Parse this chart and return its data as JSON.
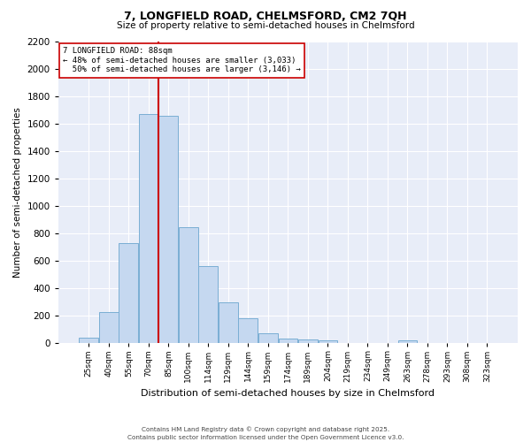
{
  "title": "7, LONGFIELD ROAD, CHELMSFORD, CM2 7QH",
  "subtitle": "Size of property relative to semi-detached houses in Chelmsford",
  "xlabel": "Distribution of semi-detached houses by size in Chelmsford",
  "ylabel": "Number of semi-detached properties",
  "categories": [
    "25sqm",
    "40sqm",
    "55sqm",
    "70sqm",
    "85sqm",
    "100sqm",
    "114sqm",
    "129sqm",
    "144sqm",
    "159sqm",
    "174sqm",
    "189sqm",
    "204sqm",
    "219sqm",
    "234sqm",
    "249sqm",
    "263sqm",
    "278sqm",
    "293sqm",
    "308sqm",
    "323sqm"
  ],
  "values": [
    40,
    225,
    730,
    1670,
    1655,
    845,
    560,
    300,
    185,
    70,
    35,
    25,
    20,
    0,
    0,
    0,
    20,
    0,
    0,
    0,
    0
  ],
  "bar_color": "#c5d8f0",
  "bar_edge_color": "#7aaed4",
  "property_label": "7 LONGFIELD ROAD: 88sqm",
  "pct_smaller": 48,
  "n_smaller": 3033,
  "pct_larger": 50,
  "n_larger": 3146,
  "red_line_idx": 4.0,
  "ylim": [
    0,
    2200
  ],
  "yticks": [
    0,
    200,
    400,
    600,
    800,
    1000,
    1200,
    1400,
    1600,
    1800,
    2000,
    2200
  ],
  "bg_color": "#e8edf8",
  "grid_color": "#ffffff",
  "footer1": "Contains HM Land Registry data © Crown copyright and database right 2025.",
  "footer2": "Contains public sector information licensed under the Open Government Licence v3.0."
}
